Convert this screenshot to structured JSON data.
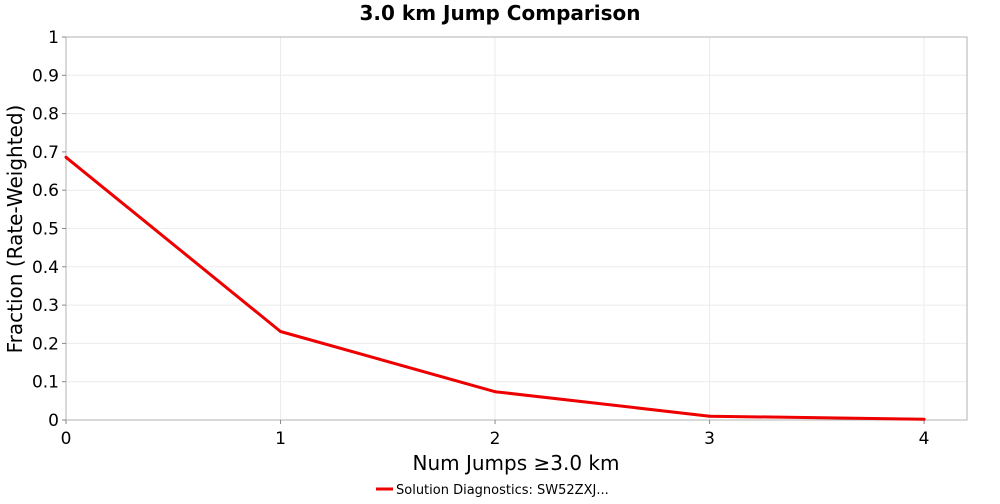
{
  "chart_data": {
    "type": "line",
    "title": "3.0 km Jump Comparison",
    "xlabel": "Num Jumps ≥3.0 km",
    "ylabel": "Fraction (Rate-Weighted)",
    "xlim": [
      0,
      4.2
    ],
    "ylim": [
      0,
      1
    ],
    "x_ticks": [
      "0",
      "1",
      "2",
      "3",
      "4"
    ],
    "y_ticks": [
      "0",
      "0.1",
      "0.2",
      "0.3",
      "0.4",
      "0.5",
      "0.6",
      "0.7",
      "0.8",
      "0.9",
      "1"
    ],
    "grid": true,
    "legend_position": "bottom-center",
    "series": [
      {
        "name": "Solution Diagnostics: SW52ZXJ...",
        "color": "#ee0000",
        "x": [
          0,
          1,
          2,
          3,
          4
        ],
        "y": [
          0.686,
          0.231,
          0.074,
          0.01,
          0.002
        ]
      }
    ]
  }
}
